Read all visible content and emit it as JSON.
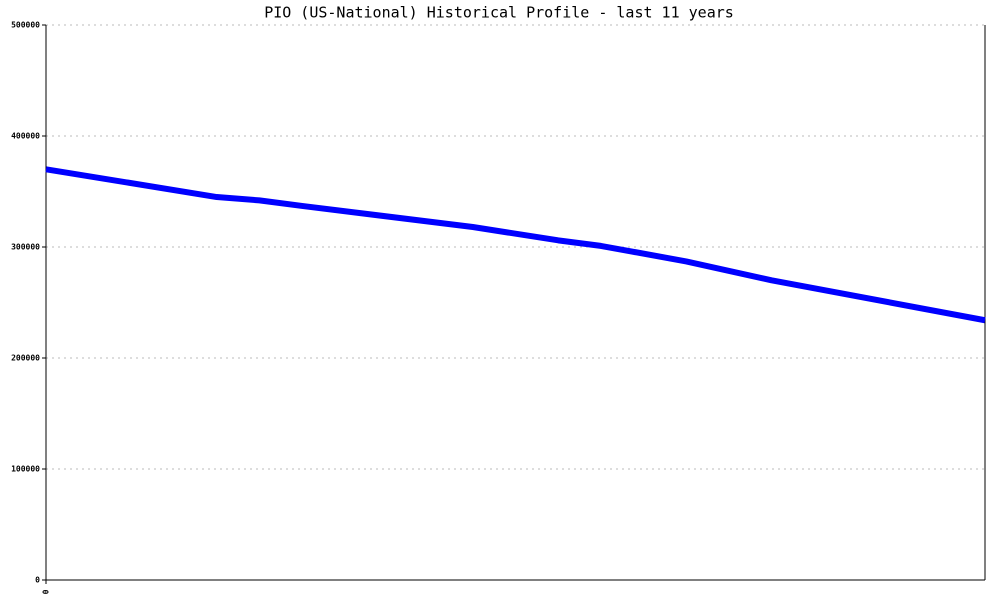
{
  "chart_data": {
    "type": "line",
    "title": "PIO (US-National) Historical Profile - last 11 years",
    "x": [
      0,
      2,
      2.5,
      3,
      5,
      6,
      6.5,
      7.5,
      8.5,
      11
    ],
    "series": [
      {
        "name": "PIO",
        "color": "#0000ff",
        "values": [
          370000,
          345000,
          342000,
          337000,
          318000,
          306000,
          301000,
          287000,
          270000,
          234000
        ]
      }
    ],
    "xlim": [
      0,
      11
    ],
    "xticks": [
      0
    ],
    "ylim": [
      0,
      500000
    ],
    "yticks": [
      0,
      100000,
      200000,
      300000,
      400000,
      500000
    ],
    "grid": true
  }
}
